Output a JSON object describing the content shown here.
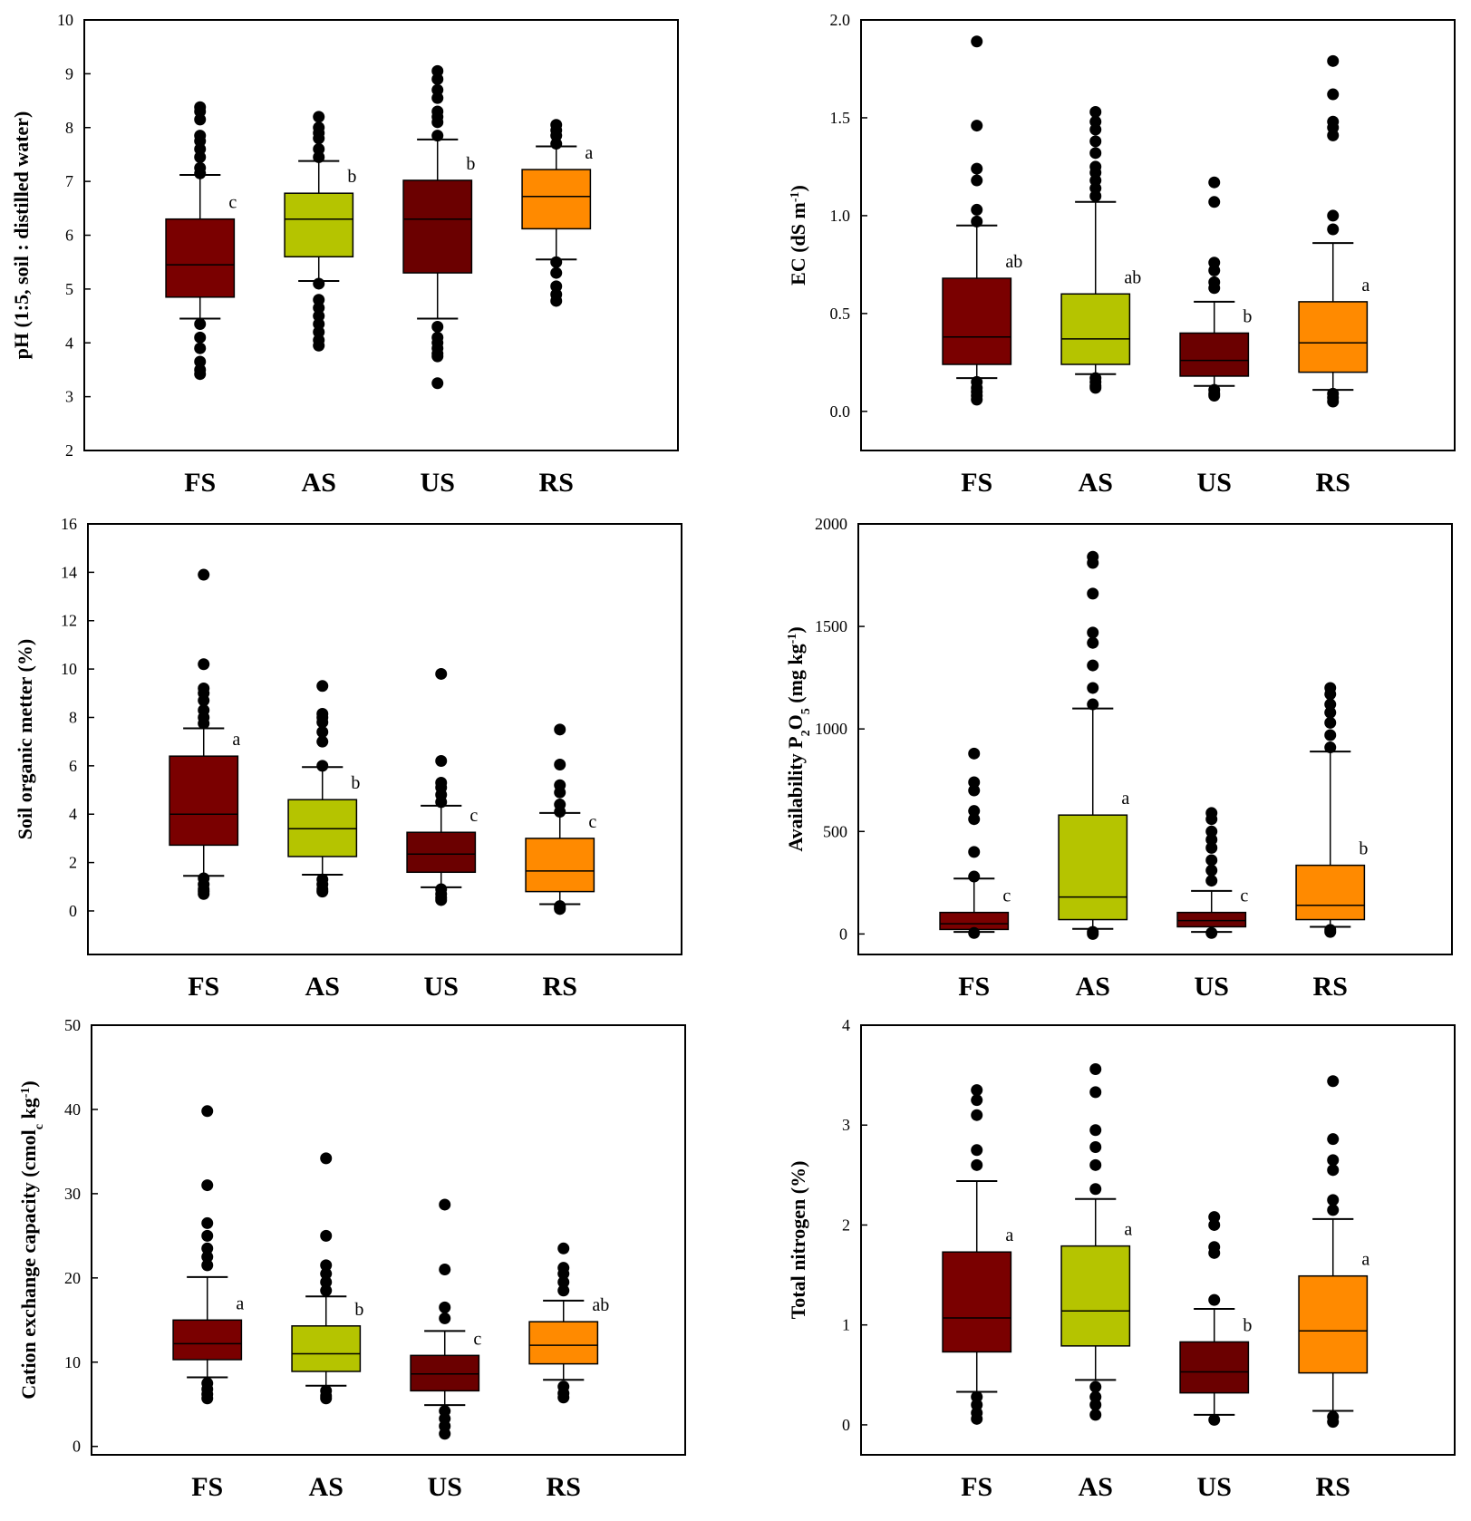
{
  "categories": [
    "FS",
    "AS",
    "US",
    "RS"
  ],
  "colors": {
    "FS": "#7a0000",
    "AS": "#b5c400",
    "US": "#6b0000",
    "RS": "#ff8a00"
  },
  "chart_data": [
    {
      "type": "box",
      "ylabel": "pH (1:5, soil : distilled water)",
      "ylabel_parts": [
        {
          "t": "pH (1:5, soil : distilled water)"
        }
      ],
      "ylim": [
        2,
        10
      ],
      "yticks": [
        2,
        3,
        4,
        5,
        6,
        7,
        8,
        9,
        10
      ],
      "tick_decimals": 0,
      "boxes": [
        {
          "category": "FS",
          "whisker_low": 4.45,
          "q1": 4.85,
          "median": 5.45,
          "q3": 6.3,
          "whisker_high": 7.12,
          "significance": "c",
          "outliers": [
            4.35,
            4.1,
            3.9,
            3.65,
            3.5,
            3.42,
            7.15,
            7.25,
            7.45,
            7.6,
            7.75,
            7.85,
            8.15,
            8.3,
            8.38
          ]
        },
        {
          "category": "AS",
          "whisker_low": 5.15,
          "q1": 5.6,
          "median": 6.3,
          "q3": 6.78,
          "whisker_high": 7.38,
          "significance": "b",
          "outliers": [
            5.1,
            4.8,
            4.65,
            4.5,
            4.35,
            4.2,
            4.05,
            3.95,
            7.45,
            7.6,
            7.8,
            7.9,
            8.0,
            8.2
          ]
        },
        {
          "category": "US",
          "whisker_low": 4.45,
          "q1": 5.3,
          "median": 6.3,
          "q3": 7.02,
          "whisker_high": 7.78,
          "significance": "b",
          "outliers": [
            4.3,
            4.1,
            4.0,
            3.9,
            3.8,
            3.75,
            3.25,
            7.85,
            8.1,
            8.2,
            8.3,
            8.55,
            8.7,
            8.9,
            9.05
          ]
        },
        {
          "category": "RS",
          "whisker_low": 5.55,
          "q1": 6.12,
          "median": 6.72,
          "q3": 7.22,
          "whisker_high": 7.65,
          "significance": "a",
          "outliers": [
            5.5,
            5.3,
            5.05,
            4.9,
            4.78,
            7.7,
            7.85,
            7.95,
            8.05
          ]
        }
      ]
    },
    {
      "type": "box",
      "ylabel": "EC (dS m-1)",
      "ylabel_parts": [
        {
          "t": "EC (dS m"
        },
        {
          "t": "-1",
          "sup": true
        },
        {
          "t": ")"
        }
      ],
      "ylim": [
        -0.2,
        2.0
      ],
      "yticks": [
        0.0,
        0.5,
        1.0,
        1.5,
        2.0
      ],
      "tick_decimals": 1,
      "boxes": [
        {
          "category": "FS",
          "whisker_low": 0.17,
          "q1": 0.24,
          "median": 0.38,
          "q3": 0.68,
          "whisker_high": 0.95,
          "significance": "ab",
          "outliers": [
            0.15,
            0.12,
            0.1,
            0.08,
            0.06,
            0.97,
            1.03,
            1.18,
            1.24,
            1.46,
            1.89
          ]
        },
        {
          "category": "AS",
          "whisker_low": 0.19,
          "q1": 0.24,
          "median": 0.37,
          "q3": 0.6,
          "whisker_high": 1.07,
          "significance": "ab",
          "outliers": [
            0.17,
            0.15,
            0.13,
            0.12,
            1.1,
            1.14,
            1.18,
            1.22,
            1.25,
            1.32,
            1.38,
            1.44,
            1.48,
            1.53
          ]
        },
        {
          "category": "US",
          "whisker_low": 0.13,
          "q1": 0.18,
          "median": 0.26,
          "q3": 0.4,
          "whisker_high": 0.56,
          "significance": "b",
          "outliers": [
            0.11,
            0.09,
            0.08,
            0.63,
            0.66,
            0.72,
            0.76,
            1.07,
            1.17
          ]
        },
        {
          "category": "RS",
          "whisker_low": 0.11,
          "q1": 0.2,
          "median": 0.35,
          "q3": 0.56,
          "whisker_high": 0.86,
          "significance": "a",
          "outliers": [
            0.09,
            0.07,
            0.05,
            0.93,
            1.0,
            1.41,
            1.45,
            1.48,
            1.62,
            1.79
          ]
        }
      ]
    },
    {
      "type": "box",
      "ylabel": "Soil organic metter (%)",
      "ylabel_parts": [
        {
          "t": "Soil organic metter (%)"
        }
      ],
      "ylim": [
        -1.8,
        16
      ],
      "yticks": [
        0,
        2,
        4,
        6,
        8,
        10,
        12,
        14,
        16
      ],
      "tick_decimals": 0,
      "boxes": [
        {
          "category": "FS",
          "whisker_low": 1.45,
          "q1": 2.72,
          "median": 4.0,
          "q3": 6.4,
          "whisker_high": 7.55,
          "significance": "a",
          "outliers": [
            1.35,
            1.1,
            0.9,
            0.8,
            0.7,
            7.75,
            8.0,
            8.3,
            8.7,
            9.0,
            9.2,
            10.2,
            13.9
          ]
        },
        {
          "category": "AS",
          "whisker_low": 1.5,
          "q1": 2.25,
          "median": 3.4,
          "q3": 4.6,
          "whisker_high": 5.95,
          "significance": "b",
          "outliers": [
            1.3,
            1.1,
            0.9,
            0.8,
            6.0,
            7.0,
            7.4,
            7.8,
            8.0,
            8.15,
            9.3
          ]
        },
        {
          "category": "US",
          "whisker_low": 0.98,
          "q1": 1.6,
          "median": 2.35,
          "q3": 3.25,
          "whisker_high": 4.35,
          "significance": "c",
          "outliers": [
            0.9,
            0.7,
            0.55,
            0.45,
            4.5,
            4.8,
            5.1,
            5.3,
            6.2,
            9.8
          ]
        },
        {
          "category": "RS",
          "whisker_low": 0.28,
          "q1": 0.8,
          "median": 1.65,
          "q3": 3.0,
          "whisker_high": 4.05,
          "significance": "c",
          "outliers": [
            0.2,
            0.12,
            0.08,
            4.1,
            4.4,
            4.9,
            5.2,
            6.05,
            7.5
          ]
        }
      ]
    },
    {
      "type": "box",
      "ylabel": "Availability P2O5 (mg kg-1)",
      "ylabel_parts": [
        {
          "t": "Availability P"
        },
        {
          "t": "2",
          "sub": true
        },
        {
          "t": "O"
        },
        {
          "t": "5",
          "sub": true
        },
        {
          "t": " (mg kg"
        },
        {
          "t": "-1",
          "sup": true
        },
        {
          "t": ")"
        }
      ],
      "ylim": [
        -100,
        2000
      ],
      "yticks": [
        0,
        500,
        1000,
        1500,
        2000
      ],
      "tick_decimals": 0,
      "boxes": [
        {
          "category": "FS",
          "whisker_low": 10,
          "q1": 22,
          "median": 50,
          "q3": 105,
          "whisker_high": 270,
          "significance": "c",
          "outliers": [
            5,
            280,
            400,
            560,
            600,
            700,
            740,
            880
          ]
        },
        {
          "category": "AS",
          "whisker_low": 25,
          "q1": 70,
          "median": 180,
          "q3": 580,
          "whisker_high": 1100,
          "significance": "a",
          "outliers": [
            10,
            0,
            1120,
            1200,
            1310,
            1420,
            1470,
            1660,
            1810,
            1840
          ]
        },
        {
          "category": "US",
          "whisker_low": 10,
          "q1": 35,
          "median": 65,
          "q3": 105,
          "whisker_high": 210,
          "significance": "c",
          "outliers": [
            5,
            260,
            310,
            360,
            420,
            460,
            500,
            560,
            590
          ]
        },
        {
          "category": "RS",
          "whisker_low": 35,
          "q1": 70,
          "median": 140,
          "q3": 335,
          "whisker_high": 890,
          "significance": "b",
          "outliers": [
            20,
            10,
            910,
            970,
            1030,
            1080,
            1120,
            1170,
            1200
          ]
        }
      ]
    },
    {
      "type": "box",
      "ylabel": "Cation exchange capacity (cmolc kg-1)",
      "ylabel_parts": [
        {
          "t": "Cation exchange capacity (cmol"
        },
        {
          "t": "c",
          "sub": true
        },
        {
          "t": " kg"
        },
        {
          "t": "-1",
          "sup": true
        },
        {
          "t": ")"
        }
      ],
      "ylim": [
        -1,
        50
      ],
      "yticks": [
        0,
        10,
        20,
        30,
        40,
        50
      ],
      "tick_decimals": 0,
      "boxes": [
        {
          "category": "FS",
          "whisker_low": 8.2,
          "q1": 10.3,
          "median": 12.2,
          "q3": 15.0,
          "whisker_high": 20.1,
          "significance": "a",
          "outliers": [
            7.5,
            6.8,
            6.2,
            5.7,
            21.5,
            22.5,
            23.5,
            25.0,
            26.5,
            31.0,
            39.8
          ]
        },
        {
          "category": "AS",
          "whisker_low": 7.2,
          "q1": 8.9,
          "median": 11.0,
          "q3": 14.3,
          "whisker_high": 17.8,
          "significance": "b",
          "outliers": [
            6.6,
            6.0,
            5.7,
            18.5,
            19.5,
            20.5,
            21.5,
            25.0,
            34.2
          ]
        },
        {
          "category": "US",
          "whisker_low": 4.9,
          "q1": 6.6,
          "median": 8.6,
          "q3": 10.8,
          "whisker_high": 13.7,
          "significance": "c",
          "outliers": [
            4.2,
            3.3,
            2.4,
            1.5,
            15.2,
            16.5,
            21.0,
            28.7
          ]
        },
        {
          "category": "RS",
          "whisker_low": 7.9,
          "q1": 9.8,
          "median": 12.0,
          "q3": 14.8,
          "whisker_high": 17.3,
          "significance": "ab",
          "outliers": [
            7.1,
            6.3,
            5.8,
            18.5,
            19.5,
            20.5,
            21.2,
            23.5
          ]
        }
      ]
    },
    {
      "type": "box",
      "ylabel": "Total nitrogen (%)",
      "ylabel_parts": [
        {
          "t": "Total nitrogen (%)"
        }
      ],
      "ylim": [
        -0.3,
        4
      ],
      "yticks": [
        0,
        1,
        2,
        3,
        4
      ],
      "tick_decimals": 0,
      "boxes": [
        {
          "category": "FS",
          "whisker_low": 0.33,
          "q1": 0.73,
          "median": 1.07,
          "q3": 1.73,
          "whisker_high": 2.44,
          "significance": "a",
          "outliers": [
            0.28,
            0.2,
            0.12,
            0.06,
            2.6,
            2.75,
            3.1,
            3.25,
            3.35
          ]
        },
        {
          "category": "AS",
          "whisker_low": 0.45,
          "q1": 0.79,
          "median": 1.14,
          "q3": 1.79,
          "whisker_high": 2.26,
          "significance": "a",
          "outliers": [
            0.38,
            0.28,
            0.2,
            0.1,
            2.36,
            2.6,
            2.78,
            2.95,
            3.33,
            3.56
          ]
        },
        {
          "category": "US",
          "whisker_low": 0.1,
          "q1": 0.32,
          "median": 0.53,
          "q3": 0.83,
          "whisker_high": 1.16,
          "significance": "b",
          "outliers": [
            0.05,
            1.25,
            1.72,
            1.78,
            2.0,
            2.08
          ]
        },
        {
          "category": "RS",
          "whisker_low": 0.14,
          "q1": 0.52,
          "median": 0.94,
          "q3": 1.49,
          "whisker_high": 2.06,
          "significance": "a",
          "outliers": [
            0.08,
            0.03,
            2.15,
            2.25,
            2.55,
            2.65,
            2.86,
            3.44
          ]
        }
      ]
    }
  ]
}
